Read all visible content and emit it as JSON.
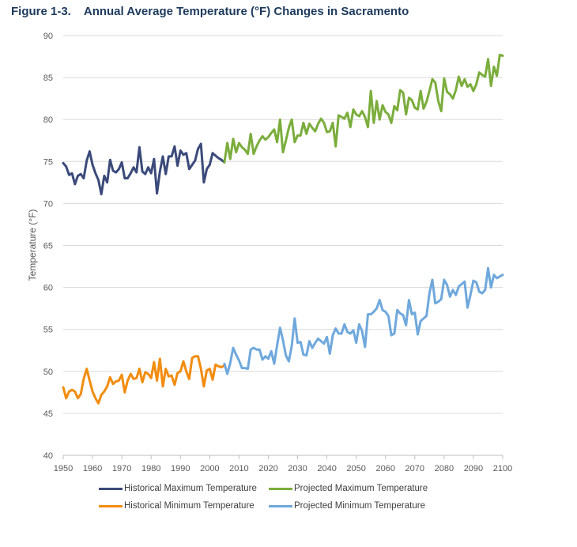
{
  "figure": {
    "number": "Figure 1-3.",
    "title": "Annual Average Temperature (°F) Changes in Sacramento"
  },
  "chart_data": {
    "type": "line",
    "title": "Annual Average Temperature (°F) Changes in Sacramento",
    "xlabel": "",
    "ylabel": "Temperature (°F)",
    "xlim": [
      1950,
      2100
    ],
    "ylim": [
      40,
      90
    ],
    "xticks": [
      1950,
      1960,
      1970,
      1980,
      1990,
      2000,
      2010,
      2020,
      2030,
      2040,
      2050,
      2060,
      2070,
      2080,
      2090,
      2100
    ],
    "yticks": [
      40,
      45,
      50,
      55,
      60,
      65,
      70,
      75,
      80,
      85,
      90
    ],
    "grid": "horizontal",
    "legend_position": "bottom",
    "series": [
      {
        "name": "Historical Maximum Temperature",
        "color": "#3b4a7a",
        "x": [
          1950,
          1951,
          1952,
          1953,
          1954,
          1955,
          1956,
          1957,
          1958,
          1959,
          1960,
          1961,
          1962,
          1963,
          1964,
          1965,
          1966,
          1967,
          1968,
          1969,
          1970,
          1971,
          1972,
          1973,
          1974,
          1975,
          1976,
          1977,
          1978,
          1979,
          1980,
          1981,
          1982,
          1983,
          1984,
          1985,
          1986,
          1987,
          1988,
          1989,
          1990,
          1991,
          1992,
          1993,
          1994,
          1995,
          1996,
          1997,
          1998,
          1999,
          2000,
          2001,
          2002,
          2003,
          2004,
          2005
        ],
        "values": [
          74.8,
          74.4,
          73.4,
          73.6,
          72.3,
          73.3,
          73.5,
          73.0,
          75.1,
          76.2,
          74.6,
          73.6,
          72.8,
          71.1,
          73.3,
          72.5,
          75.2,
          73.9,
          73.7,
          74.1,
          74.9,
          73.0,
          73.0,
          73.6,
          74.3,
          73.7,
          76.7,
          73.8,
          73.5,
          74.3,
          73.6,
          75.3,
          71.2,
          73.8,
          75.6,
          73.5,
          75.6,
          75.6,
          76.8,
          74.5,
          76.3,
          75.8,
          76.0,
          74.1,
          74.6,
          75.1,
          76.5,
          77.1,
          72.5,
          74.1,
          74.6,
          76.0,
          75.7,
          75.4,
          75.2,
          74.9
        ]
      },
      {
        "name": "Projected Maximum Temperature",
        "color": "#7bad3c",
        "x": [
          2005,
          2006,
          2007,
          2008,
          2009,
          2010,
          2011,
          2012,
          2013,
          2014,
          2015,
          2016,
          2017,
          2018,
          2019,
          2020,
          2021,
          2022,
          2023,
          2024,
          2025,
          2026,
          2027,
          2028,
          2029,
          2030,
          2031,
          2032,
          2033,
          2034,
          2035,
          2036,
          2037,
          2038,
          2039,
          2040,
          2041,
          2042,
          2043,
          2044,
          2045,
          2046,
          2047,
          2048,
          2049,
          2050,
          2051,
          2052,
          2053,
          2054,
          2055,
          2056,
          2057,
          2058,
          2059,
          2060,
          2061,
          2062,
          2063,
          2064,
          2065,
          2066,
          2067,
          2068,
          2069,
          2070,
          2071,
          2072,
          2073,
          2074,
          2075,
          2076,
          2077,
          2078,
          2079,
          2080,
          2081,
          2082,
          2083,
          2084,
          2085,
          2086,
          2087,
          2088,
          2089,
          2090,
          2091,
          2092,
          2093,
          2094,
          2095,
          2096,
          2097,
          2098,
          2099,
          2100
        ],
        "values": [
          74.9,
          77.2,
          75.3,
          77.7,
          76.1,
          77.2,
          76.7,
          76.4,
          75.9,
          78.3,
          75.9,
          76.8,
          77.5,
          78.0,
          77.6,
          77.9,
          78.4,
          78.8,
          77.3,
          80.0,
          76.1,
          77.5,
          79.0,
          80.0,
          77.3,
          78.1,
          78.1,
          79.6,
          78.3,
          79.5,
          79.0,
          78.6,
          79.5,
          80.1,
          79.6,
          78.5,
          78.6,
          79.6,
          76.8,
          80.5,
          80.3,
          80.1,
          80.8,
          79.1,
          81.2,
          80.6,
          80.4,
          81.0,
          80.3,
          79.1,
          83.4,
          79.6,
          82.2,
          80.0,
          81.7,
          80.9,
          80.6,
          79.6,
          81.6,
          81.1,
          83.5,
          83.2,
          80.6,
          82.6,
          82.3,
          81.4,
          81.2,
          83.4,
          81.3,
          82.1,
          83.4,
          84.8,
          84.4,
          82.2,
          81.0,
          84.9,
          83.3,
          83.0,
          82.5,
          83.5,
          85.1,
          84.0,
          84.8,
          83.9,
          84.2,
          83.4,
          84.2,
          85.6,
          85.3,
          85.1,
          87.2,
          84.0,
          86.3,
          85.2,
          87.7,
          87.6
        ]
      },
      {
        "name": "Historical Minimum Temperature",
        "color": "#f28c0f",
        "x": [
          1950,
          1951,
          1952,
          1953,
          1954,
          1955,
          1956,
          1957,
          1958,
          1959,
          1960,
          1961,
          1962,
          1963,
          1964,
          1965,
          1966,
          1967,
          1968,
          1969,
          1970,
          1971,
          1972,
          1973,
          1974,
          1975,
          1976,
          1977,
          1978,
          1979,
          1980,
          1981,
          1982,
          1983,
          1984,
          1985,
          1986,
          1987,
          1988,
          1989,
          1990,
          1991,
          1992,
          1993,
          1994,
          1995,
          1996,
          1997,
          1998,
          1999,
          2000,
          2001,
          2002,
          2003,
          2004,
          2005
        ],
        "values": [
          48.1,
          46.8,
          47.6,
          47.8,
          47.6,
          46.8,
          47.3,
          49.1,
          50.3,
          48.9,
          47.6,
          46.8,
          46.2,
          47.2,
          47.6,
          48.2,
          49.3,
          48.5,
          48.8,
          48.9,
          49.6,
          47.5,
          48.9,
          49.7,
          49.1,
          49.2,
          50.3,
          48.7,
          49.9,
          49.7,
          49.2,
          51.1,
          48.9,
          51.5,
          48.2,
          50.3,
          49.4,
          49.5,
          48.4,
          49.8,
          50.0,
          51.2,
          50.0,
          49.1,
          51.6,
          51.8,
          51.8,
          50.3,
          48.2,
          50.1,
          50.3,
          49.0,
          50.8,
          50.6,
          50.5,
          50.7
        ]
      },
      {
        "name": "Projected Minimum Temperature",
        "color": "#6fa8dc",
        "x": [
          2005,
          2006,
          2007,
          2008,
          2009,
          2010,
          2011,
          2012,
          2013,
          2014,
          2015,
          2016,
          2017,
          2018,
          2019,
          2020,
          2021,
          2022,
          2023,
          2024,
          2025,
          2026,
          2027,
          2028,
          2029,
          2030,
          2031,
          2032,
          2033,
          2034,
          2035,
          2036,
          2037,
          2038,
          2039,
          2040,
          2041,
          2042,
          2043,
          2044,
          2045,
          2046,
          2047,
          2048,
          2049,
          2050,
          2051,
          2052,
          2053,
          2054,
          2055,
          2056,
          2057,
          2058,
          2059,
          2060,
          2061,
          2062,
          2063,
          2064,
          2065,
          2066,
          2067,
          2068,
          2069,
          2070,
          2071,
          2072,
          2073,
          2074,
          2075,
          2076,
          2077,
          2078,
          2079,
          2080,
          2081,
          2082,
          2083,
          2084,
          2085,
          2086,
          2087,
          2088,
          2089,
          2090,
          2091,
          2092,
          2093,
          2094,
          2095,
          2096,
          2097,
          2098,
          2099,
          2100
        ],
        "values": [
          50.9,
          49.7,
          51.0,
          52.8,
          52.0,
          51.3,
          50.4,
          50.4,
          50.3,
          52.6,
          52.8,
          52.6,
          52.6,
          51.4,
          51.8,
          51.5,
          52.4,
          50.9,
          53.1,
          55.2,
          53.7,
          51.9,
          51.2,
          53.0,
          56.3,
          53.4,
          53.5,
          52.0,
          51.9,
          53.6,
          52.8,
          53.4,
          53.9,
          53.6,
          53.3,
          54.1,
          52.1,
          54.3,
          55.1,
          54.5,
          54.5,
          55.6,
          54.7,
          54.5,
          54.9,
          53.4,
          55.6,
          54.8,
          52.9,
          56.8,
          56.8,
          57.1,
          57.5,
          58.5,
          57.3,
          57.1,
          56.6,
          54.3,
          54.5,
          57.3,
          56.9,
          56.7,
          55.5,
          58.5,
          56.8,
          57.0,
          54.4,
          56.0,
          56.3,
          56.6,
          59.3,
          60.9,
          58.1,
          58.3,
          58.6,
          60.9,
          60.3,
          58.9,
          59.7,
          59.1,
          60.1,
          60.4,
          60.7,
          57.6,
          59.1,
          60.8,
          60.6,
          59.5,
          59.3,
          59.7,
          62.3,
          60.0,
          61.5,
          61.1,
          61.3,
          61.5
        ]
      }
    ]
  }
}
